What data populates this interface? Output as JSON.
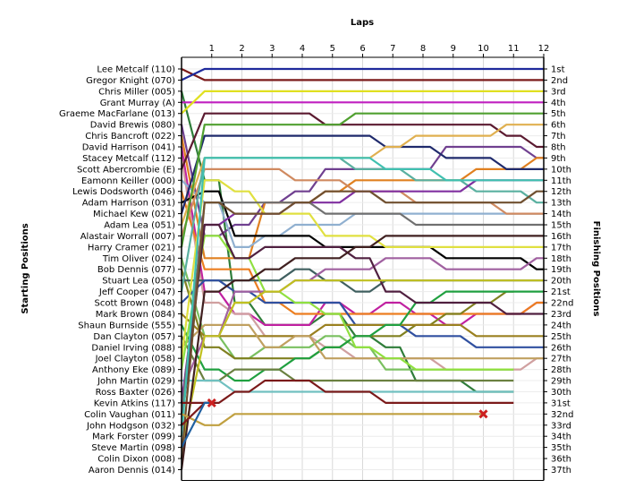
{
  "chart_data": {
    "type": "line",
    "title": "Laps",
    "ylabel_left": "Starting Positions",
    "ylabel_right": "Finishing Positions",
    "x_ticks": [
      "1",
      "2",
      "3",
      "4",
      "5",
      "6",
      "7",
      "8",
      "9",
      "10",
      "11",
      "12"
    ],
    "x_range": [
      0,
      12
    ],
    "y_range_positions": [
      1,
      37
    ],
    "starting_labels": [
      "Lee Metcalf (110)",
      "Gregor Knight (070)",
      "Chris Miller (005)",
      "Grant Murray (A)",
      "Graeme MacFarlane (013)",
      "David Brewis (080)",
      "Chris Bancroft (022)",
      "David Harrison (041)",
      "Stacey Metcalf (112)",
      "Scott Abercrombie (E)",
      "Eamonn Keiller (000)",
      "Lewis Dodsworth (046)",
      "Adam Harrison (031)",
      "Michael Kew (021)",
      "Adam Lea (051)",
      "Alastair Worrall (007)",
      "Harry Cramer (021)",
      "Tim Oliver (024)",
      "Bob Dennis (077)",
      "Stuart Lea (050)",
      "Jeff Cooper (047)",
      "Scott Brown (048)",
      "Mark Brown (084)",
      "Shaun Burnside (555)",
      "Dan Clayton (057)",
      "Daniel Irving (088)",
      "Joel Clayton (058)",
      "Anthony Eke (089)",
      "John Martin (029)",
      "Ross Baxter (026)",
      "Kevin Atkins (117)",
      "Colin Vaughan (011)",
      "John Hodgson (032)",
      "Mark Forster (099)",
      "Steve Martin (098)",
      "Colin Dixon (008)",
      "Aaron Dennis (014)"
    ],
    "finishing_labels": [
      "1st",
      "2nd",
      "3rd",
      "4th",
      "5th",
      "6th",
      "7th",
      "8th",
      "9th",
      "10th",
      "11th",
      "12th",
      "13th",
      "14th",
      "15th",
      "16th",
      "17th",
      "18th",
      "19th",
      "20th",
      "21st",
      "22nd",
      "23rd",
      "24th",
      "25th",
      "26th",
      "27th",
      "28th",
      "29th",
      "30th",
      "31st",
      "32nd",
      "33rd",
      "34th",
      "35th",
      "36th",
      "37th"
    ],
    "series": [
      {
        "start": 1,
        "color": "#7b1a1a",
        "positions": [
          2,
          2,
          2,
          2,
          2,
          2,
          2,
          2,
          2,
          2,
          2,
          2
        ]
      },
      {
        "start": 2,
        "color": "#1f2a9c",
        "positions": [
          1,
          1,
          1,
          1,
          1,
          1,
          1,
          1,
          1,
          1,
          1,
          1
        ]
      },
      {
        "start": 3,
        "color": "#2f7d3a",
        "positions": [
          11,
          22,
          24,
          24,
          23,
          25,
          26,
          29,
          29,
          30,
          30
        ]
      },
      {
        "start": 4,
        "color": "#c020c0",
        "positions": [
          4,
          4,
          4,
          4,
          4,
          4,
          4,
          4,
          4,
          4,
          4,
          4
        ]
      },
      {
        "start": 5,
        "color": "#e0e020",
        "positions": [
          3,
          3,
          3,
          3,
          3,
          3,
          3,
          3,
          3,
          3,
          3,
          3
        ]
      },
      {
        "start": 6,
        "color": "#704090",
        "positions": [
          16,
          15,
          13,
          12,
          10,
          10,
          10,
          10,
          8,
          8,
          8,
          9
        ]
      },
      {
        "start": 7,
        "color": "#e08020",
        "positions": [
          18,
          18,
          13,
          13,
          12,
          11,
          11,
          11,
          11,
          10,
          10,
          9
        ]
      },
      {
        "start": 8,
        "color": "#c020a0",
        "positions": [
          21,
          23,
          24,
          24,
          22,
          23,
          22,
          23,
          24,
          23,
          23,
          22
        ]
      },
      {
        "start": 9,
        "color": "#d0a0a0",
        "positions": [
          22,
          23,
          25,
          25,
          26,
          27,
          27,
          27,
          28,
          28,
          28,
          27
        ]
      },
      {
        "start": 10,
        "color": "#5b1a30",
        "positions": [
          5,
          5,
          5,
          5,
          6,
          6,
          6,
          6,
          6,
          6,
          7,
          8
        ]
      },
      {
        "start": 11,
        "color": "#90b0d0",
        "positions": [
          13,
          17,
          16,
          15,
          15,
          14,
          14,
          14,
          14,
          14,
          14,
          14
        ]
      },
      {
        "start": 12,
        "color": "#ec7e20",
        "positions": [
          19,
          19,
          22,
          23,
          23,
          23,
          23,
          23,
          23,
          23,
          23,
          22
        ]
      },
      {
        "start": 13,
        "color": "#000000",
        "positions": [
          12,
          16,
          16,
          16,
          17,
          17,
          17,
          17,
          18,
          18,
          18,
          19
        ]
      },
      {
        "start": 14,
        "color": "#1f2a6c",
        "positions": [
          7,
          7,
          7,
          7,
          7,
          7,
          8,
          8,
          9,
          9,
          10,
          10
        ]
      },
      {
        "start": 15,
        "color": "#e0b050",
        "positions": [
          9,
          9,
          9,
          9,
          9,
          9,
          8,
          7,
          7,
          7,
          6,
          6
        ]
      },
      {
        "start": 16,
        "color": "#d08a60",
        "positions": [
          10,
          10,
          10,
          11,
          11,
          12,
          12,
          13,
          13,
          13,
          14,
          14
        ]
      },
      {
        "start": 17,
        "color": "#50a030",
        "positions": [
          6,
          6,
          6,
          6,
          6,
          5,
          5,
          5,
          5,
          5,
          5,
          5
        ]
      },
      {
        "start": 18,
        "color": "#7ac060",
        "positions": [
          25,
          27,
          26,
          26,
          25,
          26,
          28,
          28,
          28,
          28,
          28
        ]
      },
      {
        "start": 19,
        "color": "#808020",
        "positions": [
          26,
          27,
          27,
          27,
          26,
          25,
          25,
          24,
          23,
          22,
          21
        ]
      },
      {
        "start": 20,
        "color": "#406060",
        "positions": [
          20,
          20,
          20,
          19,
          20,
          21,
          20,
          20,
          20,
          20,
          20,
          20
        ]
      },
      {
        "start": 21,
        "color": "#5ab0a0",
        "positions": [
          9,
          9,
          9,
          9,
          9,
          10,
          10,
          11,
          11,
          12,
          12,
          13
        ]
      },
      {
        "start": 22,
        "color": "#3050a0",
        "positions": [
          20,
          21,
          22,
          22,
          22,
          24,
          24,
          25,
          25,
          26,
          26,
          26
        ]
      },
      {
        "start": 23,
        "color": "#9a8020",
        "positions": [
          25,
          25,
          25,
          25,
          24,
          24,
          24,
          24,
          24,
          25,
          25,
          25
        ]
      },
      {
        "start": 24,
        "color": "#20a040",
        "positions": [
          28,
          29,
          28,
          27,
          26,
          25,
          24,
          22,
          21,
          21,
          21,
          21
        ]
      },
      {
        "start": 25,
        "color": "#6a8040",
        "positions": [
          29,
          28,
          28,
          29,
          29,
          29,
          29,
          29,
          29,
          29,
          29
        ]
      },
      {
        "start": 26,
        "color": "#c0a060",
        "positions": [
          24,
          24,
          26,
          25,
          27,
          27,
          27,
          27,
          27,
          27,
          27,
          27
        ]
      },
      {
        "start": 27,
        "color": "#e0e040",
        "positions": [
          11,
          12,
          14,
          14,
          16,
          16,
          17,
          17,
          17,
          17,
          17,
          17
        ]
      },
      {
        "start": 28,
        "color": "#90e040",
        "positions": [
          16,
          18,
          21,
          22,
          23,
          26,
          27,
          28,
          28,
          28,
          28
        ]
      },
      {
        "start": 29,
        "color": "#70c0c0",
        "positions": [
          29,
          30,
          30,
          30,
          30,
          30,
          30,
          30,
          30,
          30,
          30
        ]
      },
      {
        "start": 30,
        "color": "#a060a0",
        "positions": [
          25,
          21,
          21,
          20,
          19,
          19,
          18,
          18,
          19,
          19,
          19,
          18
        ]
      },
      {
        "start": 31,
        "color": "#8030a0",
        "positions": [
          15,
          14,
          14,
          13,
          13,
          12,
          12,
          12,
          12,
          11,
          11,
          11
        ]
      },
      {
        "start": 32,
        "color": "#707070",
        "positions": [
          13,
          13,
          13,
          13,
          14,
          14,
          14,
          15,
          15,
          15,
          15,
          15
        ]
      },
      {
        "start": 33,
        "color": "#502040",
        "positions": [
          15,
          18,
          17,
          17,
          17,
          18,
          21,
          22,
          22,
          22,
          23,
          23
        ]
      },
      {
        "start": 34,
        "color": "#40c0b0",
        "positions": [
          9,
          9,
          9,
          9,
          9,
          9,
          10,
          10,
          11,
          11,
          11,
          11
        ]
      },
      {
        "start": 35,
        "color": "#c0c020",
        "positions": [
          25,
          22,
          21,
          20,
          20,
          20,
          20,
          20,
          20,
          20,
          20,
          20
        ]
      },
      {
        "start": 36,
        "color": "#705030",
        "positions": [
          13,
          14,
          14,
          13,
          12,
          12,
          13,
          13,
          13,
          13,
          13,
          12
        ]
      },
      {
        "start": 37,
        "color": "#402020",
        "positions": [
          21,
          20,
          19,
          18,
          18,
          17,
          16,
          16,
          16,
          16,
          16,
          16
        ]
      }
    ],
    "retirements": [
      {
        "name": "Kevin Atkins (117)",
        "color": "#7b1a1a",
        "lap": 1,
        "position": 31,
        "marker": "x",
        "marker_color": "#cc2020"
      },
      {
        "name": "Colin Vaughan (011)",
        "color": "#c0a040",
        "lap": 10,
        "position": 32,
        "marker": "x",
        "marker_color": "#cc2020"
      }
    ],
    "short_series": [
      {
        "start": 31,
        "color": "#7b1a1a",
        "positions": [
          31
        ]
      },
      {
        "start": 32,
        "color": "#c0a040",
        "positions": [
          33,
          32,
          32,
          32,
          32,
          32,
          32,
          32,
          32,
          32
        ]
      },
      {
        "start": 33,
        "color": "#7b1a1a",
        "positions": [
          31,
          30,
          29,
          29,
          30,
          30,
          31,
          31,
          31,
          31,
          31
        ]
      },
      {
        "start": 35,
        "color": "#2060a0",
        "positions": [
          31
        ]
      }
    ],
    "grid": true,
    "legend": "none"
  }
}
